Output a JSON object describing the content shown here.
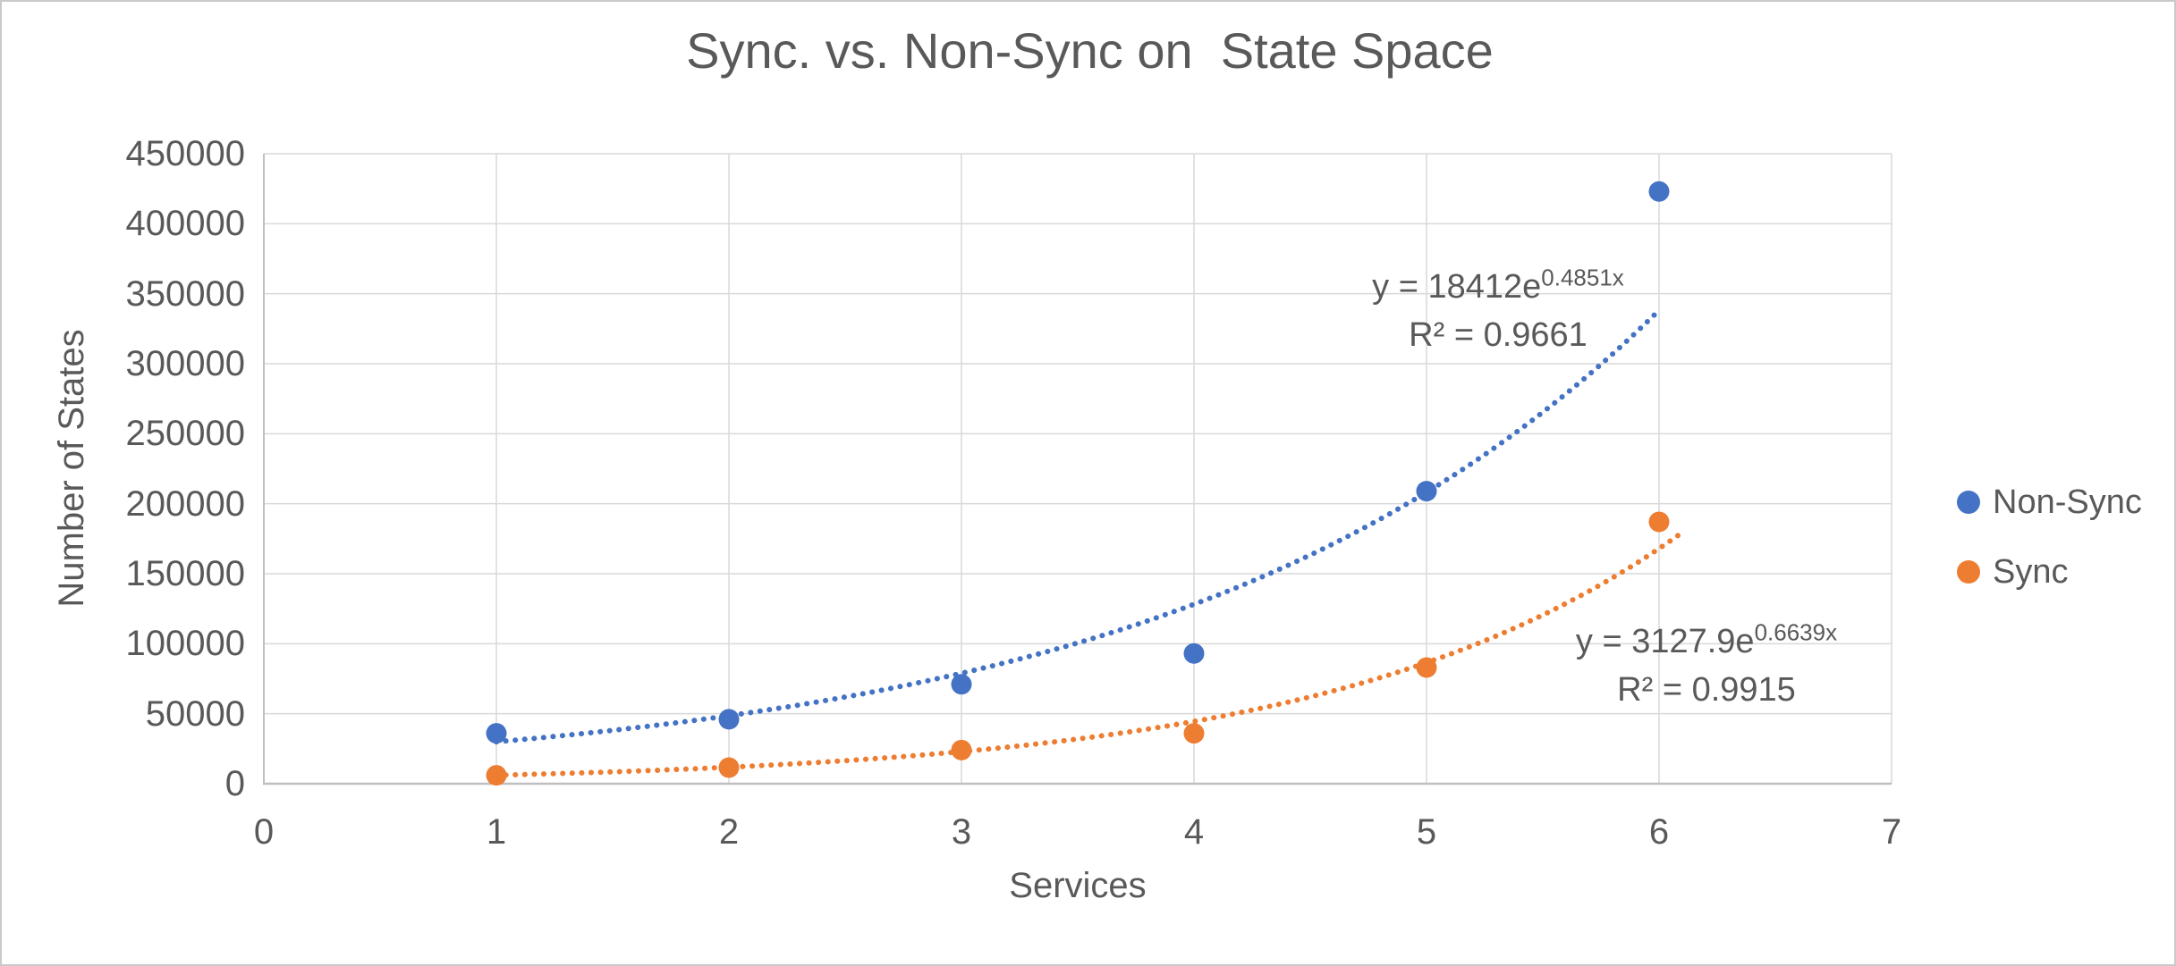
{
  "chart_data": {
    "type": "scatter",
    "title": "Sync. vs. Non-Sync on  State Space",
    "xlabel": "Services",
    "ylabel": "Number of States",
    "xlim": [
      0,
      7
    ],
    "ylim": [
      0,
      450000
    ],
    "x_ticks": [
      0,
      1,
      2,
      3,
      4,
      5,
      6,
      7
    ],
    "y_ticks": [
      0,
      50000,
      100000,
      150000,
      200000,
      250000,
      300000,
      350000,
      400000,
      450000
    ],
    "grid": true,
    "grid_color": "#d9d9d9",
    "axis_color": "#bfbfbf",
    "text_color": "#595959",
    "legend_position": "right",
    "series": [
      {
        "name": "Non-Sync",
        "color": "#4472C4",
        "marker": "circle",
        "x": [
          1,
          2,
          3,
          4,
          5,
          6
        ],
        "y": [
          36000,
          46000,
          71000,
          93000,
          209000,
          423000
        ],
        "trendline": {
          "type": "exponential",
          "style": "dotted",
          "a": 18412,
          "b": 0.4851,
          "x_from": 1,
          "x_to": 6,
          "equation": "y = 18412e",
          "exponent": "0.4851x",
          "r2": "R² = 0.9661"
        }
      },
      {
        "name": "Sync",
        "color": "#ED7D31",
        "marker": "circle",
        "x": [
          1,
          2,
          3,
          4,
          5,
          6
        ],
        "y": [
          6000,
          11500,
          24000,
          36000,
          83000,
          187000
        ],
        "trendline": {
          "type": "exponential",
          "style": "dotted",
          "a": 3127.9,
          "b": 0.6639,
          "x_from": 1,
          "x_to": 6.1,
          "equation": "y = 3127.9e",
          "exponent": "0.6639x",
          "r2": "R² = 0.9915"
        }
      }
    ]
  },
  "legend": {
    "items": [
      {
        "label": "Non-Sync",
        "color": "#4472C4"
      },
      {
        "label": "Sync",
        "color": "#ED7D31"
      }
    ]
  }
}
